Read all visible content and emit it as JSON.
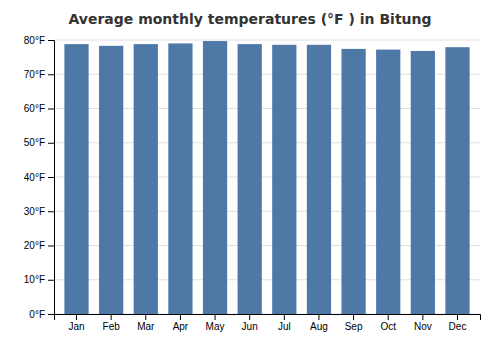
{
  "chart_data": {
    "type": "bar",
    "title": "Average monthly temperatures (°F ) in Bitung",
    "categories": [
      "Jan",
      "Feb",
      "Mar",
      "Apr",
      "May",
      "Jun",
      "Jul",
      "Aug",
      "Sep",
      "Oct",
      "Nov",
      "Dec"
    ],
    "values": [
      78.8,
      78.3,
      78.8,
      79.0,
      79.7,
      78.8,
      78.6,
      78.6,
      77.4,
      77.2,
      76.8,
      77.9
    ],
    "ylim": [
      0,
      80
    ],
    "yticks": [
      {
        "value": 0,
        "label": "0°F"
      },
      {
        "value": 10,
        "label": "10°F"
      },
      {
        "value": 20,
        "label": "20°F"
      },
      {
        "value": 30,
        "label": "30°F"
      },
      {
        "value": 40,
        "label": "40°F"
      },
      {
        "value": 50,
        "label": "50°F"
      },
      {
        "value": 60,
        "label": "60°F"
      },
      {
        "value": 70,
        "label": "70°F"
      },
      {
        "value": 80,
        "label": "80°F"
      }
    ],
    "grid": true
  }
}
